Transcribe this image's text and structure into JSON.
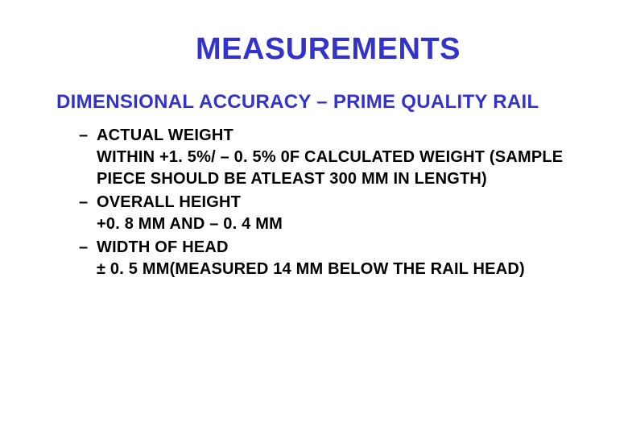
{
  "slide": {
    "title": "MEASUREMENTS",
    "subtitle": "DIMENSIONAL ACCURACY – PRIME QUALITY RAIL",
    "title_color": "#3333cc",
    "subtitle_color": "#3333cc",
    "body_color": "#000000",
    "background_color": "#ffffff",
    "title_fontsize": 38,
    "subtitle_fontsize": 24,
    "body_fontsize": 20,
    "bullets": [
      {
        "label": "ACTUAL WEIGHT",
        "detail": "WITHIN +1. 5%/ – 0. 5% 0F CALCULATED WEIGHT (SAMPLE PIECE SHOULD BE ATLEAST 300 MM IN LENGTH)"
      },
      {
        "label": "OVERALL HEIGHT",
        "detail": "+0. 8 MM AND – 0. 4 MM"
      },
      {
        "label": "WIDTH OF HEAD",
        "detail": "± 0. 5 MM(MEASURED 14 MM BELOW THE RAIL HEAD)"
      }
    ]
  }
}
